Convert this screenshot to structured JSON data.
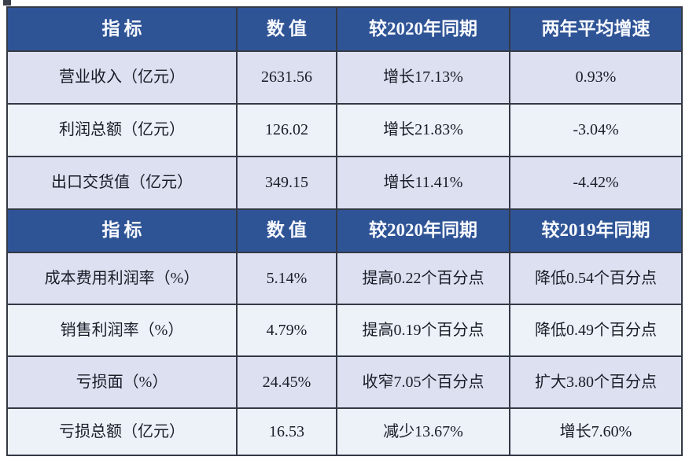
{
  "colors": {
    "header_bg": "#2F5496",
    "header_text": "#F7F9FD",
    "row_alt_bg": "#DCE0F0",
    "row_plain_bg": "#EDF1F8",
    "grid_line": "#333945",
    "body_text": "#181D27"
  },
  "chart_data": [
    {
      "type": "table",
      "headers": [
        "指标",
        "数值",
        "较2020年同期",
        "两年平均增速"
      ],
      "rows": [
        [
          "营业收入（亿元）",
          "2631.56",
          "增长17.13%",
          "0.93%"
        ],
        [
          "利润总额（亿元）",
          "126.02",
          "增长21.83%",
          "-3.04%"
        ],
        [
          "出口交货值（亿元）",
          "349.15",
          "增长11.41%",
          "-4.42%"
        ]
      ]
    },
    {
      "type": "table",
      "headers": [
        "指标",
        "数值",
        "较2020年同期",
        "较2019年同期"
      ],
      "rows": [
        [
          "成本费用利润率（%）",
          "5.14%",
          "提高0.22个百分点",
          "降低0.54个百分点"
        ],
        [
          "销售利润率（%）",
          "4.79%",
          "提高0.19个百分点",
          "降低0.49个百分点"
        ],
        [
          "亏损面（%）",
          "24.45%",
          "收窄7.05个百分点",
          "扩大3.80个百分点"
        ],
        [
          "亏损总额（亿元）",
          "16.53",
          "减少13.67%",
          "增长7.60%"
        ]
      ]
    }
  ]
}
